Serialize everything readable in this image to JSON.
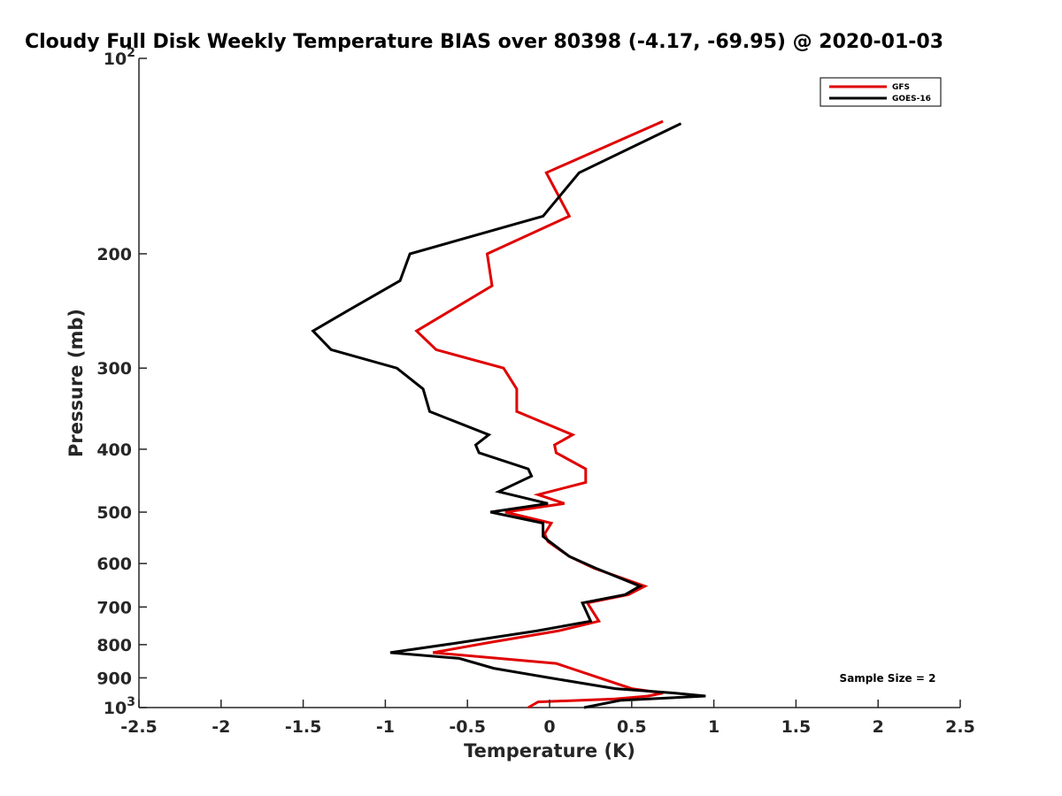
{
  "chart_data": {
    "type": "line",
    "title": "Cloudy Full Disk Weekly Temperature BIAS over 80398 (-4.17, -69.95) @ 2020-01-03",
    "xlabel": "Temperature (K)",
    "ylabel": "Pressure (mb)",
    "xlim": [
      -2.5,
      2.5
    ],
    "ylim": [
      100,
      1000
    ],
    "y_scale": "log",
    "y_reversed": true,
    "x_ticks": [
      "-2.5",
      "-2",
      "-1.5",
      "-1",
      "-0.5",
      "0",
      "0.5",
      "1",
      "1.5",
      "2",
      "2.5"
    ],
    "y_ticks": [
      {
        "value": 100,
        "base": "10",
        "exp": "2"
      },
      {
        "value": 200,
        "label": "200"
      },
      {
        "value": 300,
        "label": "300"
      },
      {
        "value": 400,
        "label": "400"
      },
      {
        "value": 500,
        "label": "500"
      },
      {
        "value": 600,
        "label": "600"
      },
      {
        "value": 700,
        "label": "700"
      },
      {
        "value": 800,
        "label": "800"
      },
      {
        "value": 900,
        "label": "900"
      },
      {
        "value": 1000,
        "base": "10",
        "exp": "3"
      }
    ],
    "legend_position": "top-right",
    "grid": false,
    "annotation": "Sample Size = 2",
    "series": [
      {
        "name": "GFS",
        "color": "#e00000",
        "points": [
          [
            0.69,
            125
          ],
          [
            -0.02,
            150
          ],
          [
            0.12,
            175
          ],
          [
            -0.38,
            200
          ],
          [
            -0.35,
            224
          ],
          [
            -0.81,
            263
          ],
          [
            -0.69,
            281
          ],
          [
            -0.28,
            300
          ],
          [
            -0.2,
            323
          ],
          [
            -0.2,
            350
          ],
          [
            0.14,
            380
          ],
          [
            0.03,
            394
          ],
          [
            0.04,
            405
          ],
          [
            0.22,
            429
          ],
          [
            0.22,
            450
          ],
          [
            -0.07,
            470
          ],
          [
            0.09,
            485
          ],
          [
            -0.27,
            500
          ],
          [
            0.01,
            520
          ],
          [
            -0.03,
            540
          ],
          [
            -0.01,
            555
          ],
          [
            0.12,
            585
          ],
          [
            0.27,
            610
          ],
          [
            0.58,
            650
          ],
          [
            0.48,
            670
          ],
          [
            0.23,
            690
          ],
          [
            0.3,
            736
          ],
          [
            0.05,
            762
          ],
          [
            -0.38,
            795
          ],
          [
            -0.71,
            823
          ],
          [
            0.04,
            855
          ],
          [
            0.5,
            935
          ],
          [
            0.69,
            950
          ],
          [
            0.6,
            960
          ],
          [
            0.4,
            970
          ],
          [
            -0.07,
            980
          ],
          [
            -0.13,
            1000
          ]
        ]
      },
      {
        "name": "GOES-16",
        "color": "#000000",
        "points": [
          [
            0.8,
            126
          ],
          [
            0.18,
            150
          ],
          [
            -0.04,
            175
          ],
          [
            -0.85,
            200
          ],
          [
            -0.91,
            220
          ],
          [
            -1.22,
            244
          ],
          [
            -1.44,
            263
          ],
          [
            -1.33,
            281
          ],
          [
            -0.93,
            300
          ],
          [
            -0.77,
            323
          ],
          [
            -0.73,
            350
          ],
          [
            -0.37,
            380
          ],
          [
            -0.45,
            394
          ],
          [
            -0.43,
            405
          ],
          [
            -0.13,
            429
          ],
          [
            -0.11,
            440
          ],
          [
            -0.31,
            465
          ],
          [
            -0.01,
            485
          ],
          [
            -0.36,
            500
          ],
          [
            -0.04,
            520
          ],
          [
            -0.04,
            545
          ],
          [
            0.0,
            555
          ],
          [
            0.12,
            585
          ],
          [
            0.28,
            610
          ],
          [
            0.55,
            650
          ],
          [
            0.46,
            670
          ],
          [
            0.2,
            690
          ],
          [
            0.25,
            736
          ],
          [
            -0.08,
            762
          ],
          [
            -0.56,
            795
          ],
          [
            -0.97,
            823
          ],
          [
            -0.55,
            840
          ],
          [
            -0.34,
            870
          ],
          [
            0.0,
            900
          ],
          [
            0.4,
            935
          ],
          [
            0.76,
            950
          ],
          [
            0.95,
            960
          ],
          [
            0.43,
            975
          ],
          [
            0.21,
            1000
          ]
        ]
      }
    ]
  }
}
